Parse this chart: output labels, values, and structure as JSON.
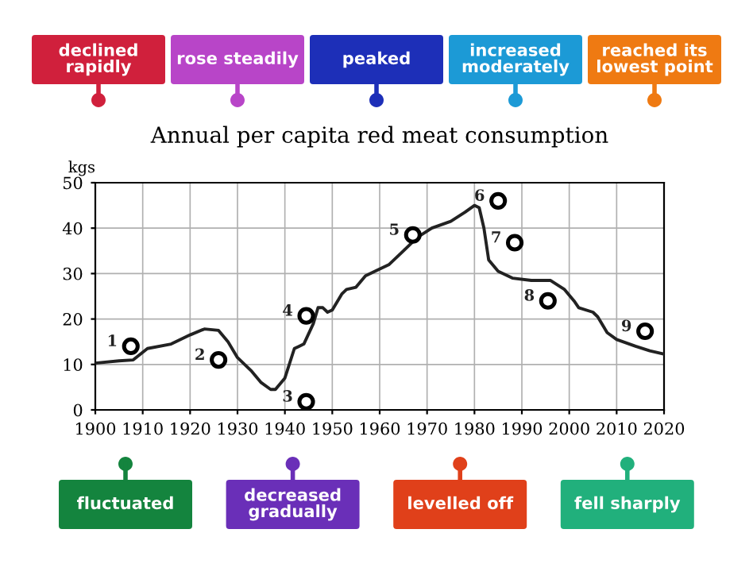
{
  "chart_data": [
    {
      "type": "line",
      "title": "Annual per capita red meat consumption",
      "ylabel": "kgs",
      "xlim": [
        1900,
        2020
      ],
      "xticks": [
        1900,
        1910,
        1920,
        1930,
        1940,
        1950,
        1960,
        1970,
        1980,
        1990,
        2000,
        2010,
        2020
      ],
      "ylim": [
        0,
        50
      ],
      "yticks": [
        0,
        10,
        20,
        30,
        40,
        50
      ],
      "grid": true,
      "series": [
        {
          "color": "#222222",
          "marker": "none",
          "line_style": "solid",
          "x": [
            1900,
            1905,
            1908,
            1911,
            1916,
            1920,
            1923,
            1926,
            1928,
            1930,
            1933,
            1935,
            1937,
            1938,
            1940,
            1942,
            1943,
            1944,
            1946,
            1947,
            1948,
            1949,
            1950,
            1952,
            1953,
            1955,
            1957,
            1959,
            1962,
            1965,
            1968,
            1971,
            1975,
            1978,
            1980,
            1981,
            1982,
            1983,
            1985,
            1988,
            1992,
            1996,
            1999,
            2001,
            2002,
            2005,
            2006,
            2008,
            2010,
            2014,
            2017,
            2020
          ],
          "values": [
            10.3,
            10.8,
            11,
            13.5,
            14.5,
            16.5,
            17.8,
            17.5,
            15,
            11.5,
            8.5,
            6,
            4.5,
            4.5,
            7,
            13.5,
            14,
            14.5,
            19,
            22.5,
            22.5,
            21.5,
            22,
            25.5,
            26.5,
            27,
            29.5,
            30.5,
            32,
            35,
            38,
            40,
            41.5,
            43.5,
            45,
            44.5,
            40,
            33,
            30.5,
            29,
            28.5,
            28.5,
            26.5,
            24,
            22.5,
            21.5,
            20.5,
            17,
            15.5,
            14,
            13,
            12.3
          ]
        },
        {
          "type": "scatter",
          "color": "#000000",
          "marker": "circle",
          "x": [
            1907.5,
            1926,
            1944.5,
            1944.5,
            1967,
            1985,
            1988.5,
            1995.5,
            2016
          ],
          "values": [
            14,
            11,
            1.8,
            20.7,
            38.5,
            46,
            36.8,
            24,
            17.3
          ]
        }
      ],
      "annotations": [
        {
          "text": "1",
          "x": 1907.5,
          "y": 14
        },
        {
          "text": "2",
          "x": 1926,
          "y": 11
        },
        {
          "text": "3",
          "x": 1944.5,
          "y": 1.8
        },
        {
          "text": "4",
          "x": 1944.5,
          "y": 20.7
        },
        {
          "text": "5",
          "x": 1967,
          "y": 38.5
        },
        {
          "text": "6",
          "x": 1985,
          "y": 46
        },
        {
          "text": "7",
          "x": 1988.5,
          "y": 36.8
        },
        {
          "text": "8",
          "x": 1995.5,
          "y": 24
        },
        {
          "text": "9",
          "x": 2016,
          "y": 17.3
        }
      ]
    },
    {
      "type": "other",
      "annotations": [
        "declined\nrapidly",
        "rose steadily",
        "peaked",
        "increased\nmoderately",
        "reached its\nlowest point",
        "fluctuated",
        "decreased\ngradually",
        "levelled off",
        "fell sharply"
      ]
    }
  ]
}
